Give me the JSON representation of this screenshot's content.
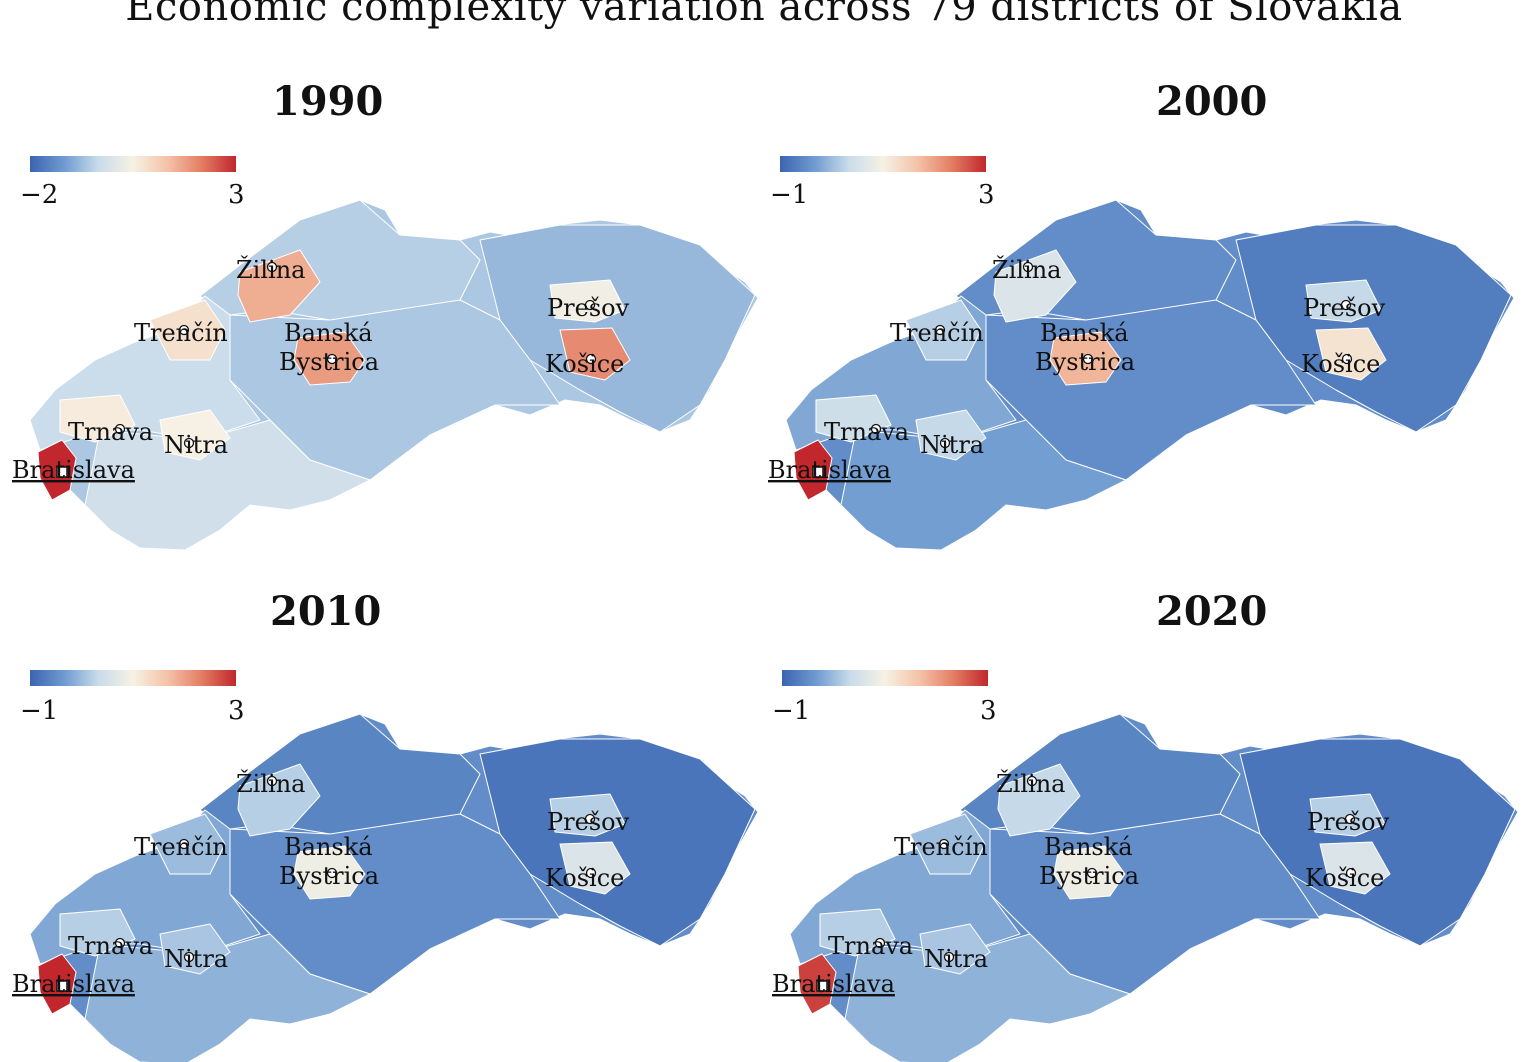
{
  "title": "Economic complexity variation across 79 districts of Slovakia",
  "cities": [
    {
      "name": "Žilina",
      "kind": "city"
    },
    {
      "name": "Trenčín",
      "kind": "city"
    },
    {
      "name": "Banská Bystrica",
      "line1": "Banská",
      "line2": "Bystrica",
      "kind": "city"
    },
    {
      "name": "Prešov",
      "kind": "city"
    },
    {
      "name": "Košice",
      "kind": "city"
    },
    {
      "name": "Trnava",
      "kind": "city"
    },
    {
      "name": "Nitra",
      "kind": "city"
    },
    {
      "name": "Bratislava",
      "kind": "capital"
    }
  ],
  "colorscale": [
    "#3b64b0",
    "#6f9bd0",
    "#c9dcea",
    "#f6f1e4",
    "#f4c3a8",
    "#e37d63",
    "#c1272d"
  ],
  "panels": [
    {
      "year": "1990",
      "cb_min": "−2",
      "cb_max": "3",
      "district_values": {
        "bratislava": 3.0,
        "trnava": 0.6,
        "nitra": 0.5,
        "trencin": 0.8,
        "zilina": 1.6,
        "banska_bystrica": 1.8,
        "presov": 0.4,
        "kosice": 2.0,
        "west": -0.3,
        "central": -0.6,
        "north": -0.5,
        "east": -0.8,
        "south": -0.2
      }
    },
    {
      "year": "2000",
      "cb_min": "−1",
      "cb_max": "3",
      "district_values": {
        "bratislava": 3.0,
        "trnava": 0.4,
        "nitra": 0.3,
        "trencin": 0.2,
        "zilina": 0.6,
        "banska_bystrica": 1.8,
        "presov": 0.3,
        "kosice": 1.2,
        "west": -0.2,
        "central": -0.5,
        "north": -0.5,
        "east": -0.7,
        "south": -0.3
      }
    },
    {
      "year": "2010",
      "cb_min": "−1",
      "cb_max": "3",
      "district_values": {
        "bratislava": 3.0,
        "trnava": 0.2,
        "nitra": 0.1,
        "trencin": 0.0,
        "zilina": 0.2,
        "banska_bystrica": 0.9,
        "presov": 0.2,
        "kosice": 0.6,
        "west": -0.2,
        "central": -0.5,
        "north": -0.6,
        "east": -0.8,
        "south": -0.1
      }
    },
    {
      "year": "2020",
      "cb_min": "−1",
      "cb_max": "3",
      "district_values": {
        "bratislava": 2.8,
        "trnava": 0.2,
        "nitra": 0.1,
        "trencin": 0.0,
        "zilina": 0.3,
        "banska_bystrica": 0.9,
        "presov": 0.2,
        "kosice": 0.6,
        "west": -0.2,
        "central": -0.5,
        "north": -0.6,
        "east": -0.8,
        "south": -0.1
      }
    }
  ]
}
